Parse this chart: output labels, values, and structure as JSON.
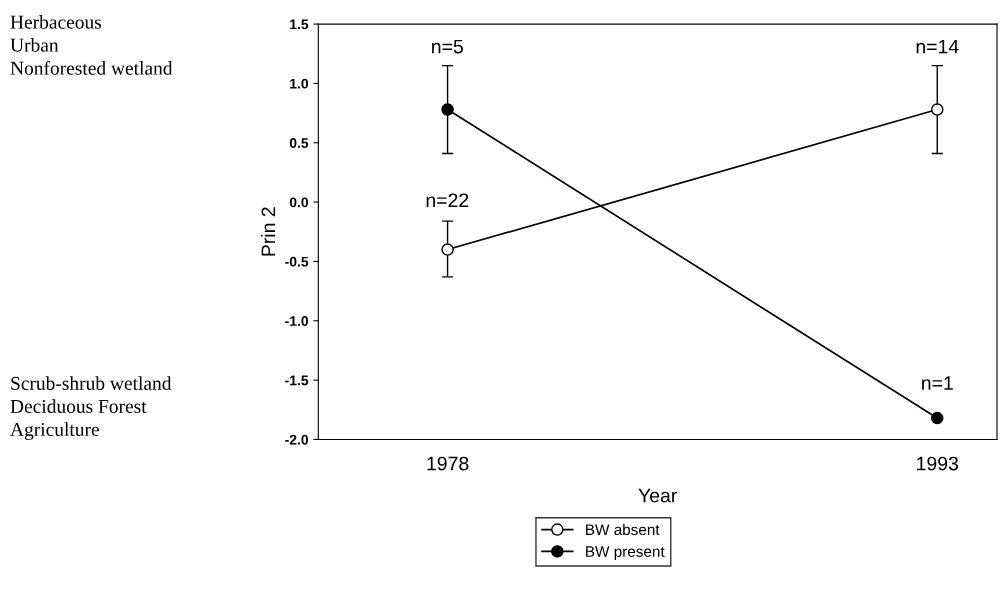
{
  "chart_data": {
    "type": "line",
    "xlabel": "Year",
    "ylabel": "Prin 2",
    "categories": [
      "1978",
      "1993"
    ],
    "ylim": [
      -2.0,
      1.5
    ],
    "yticks": [
      {
        "value": -2.0,
        "label": "-2.0"
      },
      {
        "value": -1.5,
        "label": "-1.5"
      },
      {
        "value": -1.0,
        "label": "-1.0"
      },
      {
        "value": -0.5,
        "label": "-0.5"
      },
      {
        "value": 0.0,
        "label": "0.0"
      },
      {
        "value": 0.5,
        "label": "0.5"
      },
      {
        "value": 1.0,
        "label": "1.0"
      },
      {
        "value": 1.5,
        "label": "1.5"
      }
    ],
    "series": [
      {
        "name": "BW absent",
        "color": "#ffffff",
        "values": [
          -0.4,
          0.78
        ],
        "errors": [
          [
            -0.63,
            -0.16
          ],
          [
            0.41,
            1.15
          ]
        ]
      },
      {
        "name": "BW present",
        "color": "#000000",
        "values": [
          0.78,
          -1.82
        ],
        "errors": [
          [
            0.41,
            1.15
          ],
          null
        ]
      }
    ],
    "marker": "circle",
    "line_style": "solid",
    "grid": false,
    "legend": "bottom",
    "annotations": [
      "n=22",
      "n=5",
      "n=14",
      "n=1",
      "Herbaceous\nUrban\nNonforested wetland",
      "Scrub-shrub wetland\nDeciduous Forest\nAgriculture"
    ]
  }
}
